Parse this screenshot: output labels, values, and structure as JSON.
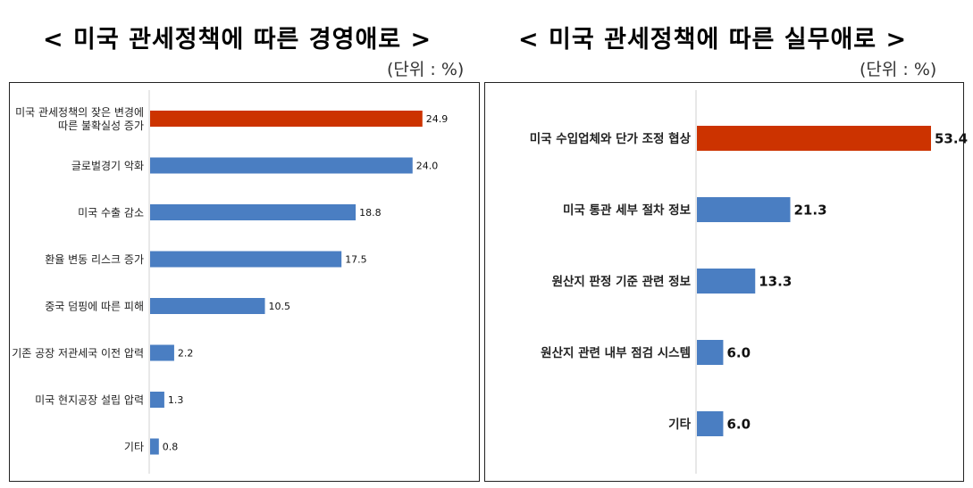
{
  "chart_data": [
    {
      "type": "bar",
      "orientation": "horizontal",
      "title": "< 미국 관세정책에 따른 경영애로 >",
      "unit_note": "(단위 : %)",
      "categories": [
        "미국 관세정책의  잦은 변경에|따른 불확실성 증가",
        "글로벌경기 악화",
        "미국 수출 감소",
        "환율 변동 리스크 증가",
        "중국 덤핑에 따른 피해",
        "기존 공장 저관세국 이전 압력",
        "미국 현지공장 설립 압력",
        "기타"
      ],
      "values": [
        24.9,
        24.0,
        18.8,
        17.5,
        10.5,
        2.2,
        1.3,
        0.8
      ],
      "value_labels": [
        "24.9",
        "24.0",
        "18.8",
        "17.5",
        "10.5",
        "2.2",
        "1.3",
        "0.8"
      ],
      "highlight_index": 0,
      "xlim": [
        0,
        25
      ]
    },
    {
      "type": "bar",
      "orientation": "horizontal",
      "title": "< 미국 관세정책에 따른 실무애로 >",
      "unit_note": "(단위 : %)",
      "categories": [
        "미국 수입업체와 단가 조정 협상",
        "미국 통관 세부 절차 정보",
        "원산지 판정 기준 관련 정보",
        "원산지 관련 내부 점검 시스템",
        "기타"
      ],
      "values": [
        53.4,
        21.3,
        13.3,
        6.0,
        6.0
      ],
      "value_labels": [
        "53.4",
        "21.3",
        "13.3",
        "6.0",
        "6.0"
      ],
      "highlight_index": 0,
      "xlim": [
        0,
        53.4
      ]
    }
  ],
  "colors": {
    "highlight": "#CC3300",
    "bar": "#4A7EC2"
  }
}
